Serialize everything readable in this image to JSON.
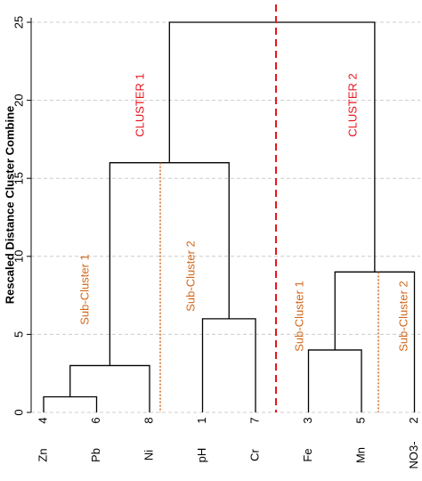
{
  "chart_data": {
    "type": "dendrogram",
    "ylabel": "Rescaled Distance Cluster Combine",
    "ylim": [
      0,
      25
    ],
    "yticks": [
      0,
      5,
      10,
      15,
      20,
      25
    ],
    "grid": true,
    "leaves": [
      {
        "name": "Zn",
        "number": 4
      },
      {
        "name": "Pb",
        "number": 6
      },
      {
        "name": "Ni",
        "number": 8
      },
      {
        "name": "pH",
        "number": 1
      },
      {
        "name": "Cr",
        "number": 7
      },
      {
        "name": "Fe",
        "number": 3
      },
      {
        "name": "Mn",
        "number": 5
      },
      {
        "name": "NO3-",
        "number": 2
      }
    ],
    "merges": [
      {
        "left": 0,
        "right": 1,
        "height": 1
      },
      {
        "left": 8,
        "right": 2,
        "height": 3
      },
      {
        "left": 3,
        "right": 4,
        "height": 6
      },
      {
        "left": 5,
        "right": 6,
        "height": 4
      },
      {
        "left": 11,
        "right": 7,
        "height": 9
      },
      {
        "left": 9,
        "right": 10,
        "height": 16
      },
      {
        "left": 13,
        "right": 12,
        "height": 25
      }
    ],
    "color": "#000000",
    "annotations": {
      "cluster_1": "CLUSTER 1",
      "cluster_2": "CLUSTER 2",
      "sub_cluster_1_left": "Sub-Cluster 1",
      "sub_cluster_2_left": "Sub-Cluster 2",
      "sub_cluster_1_right": "Sub-Cluster 1",
      "sub_cluster_2_right": "Sub-Cluster 2"
    },
    "cluster_color": "#e8141c",
    "sub_cluster_color": "#d2691e"
  }
}
